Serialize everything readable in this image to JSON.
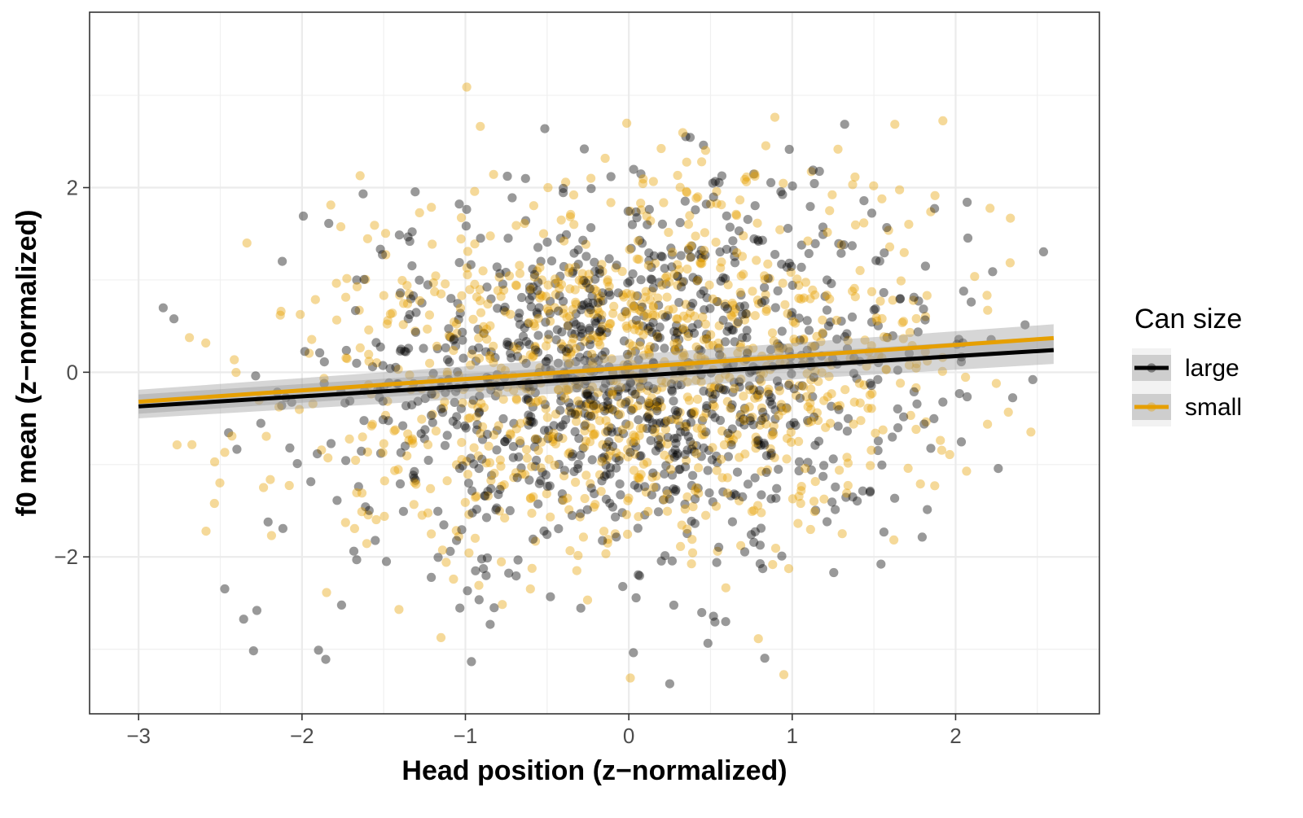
{
  "chart_data": {
    "type": "scatter",
    "title": "",
    "xlabel": "Head position (z−normalized)",
    "ylabel": "f0 mean (z−normalized)",
    "xlim": [
      -3.3,
      2.88
    ],
    "ylim": [
      -3.7,
      3.9
    ],
    "x_ticks": [
      -3,
      -2,
      -1,
      0,
      1,
      2
    ],
    "x_tick_labels": [
      "−3",
      "−2",
      "−1",
      "0",
      "1",
      "2"
    ],
    "y_ticks": [
      -2,
      0,
      2
    ],
    "y_tick_labels": [
      "−2",
      "0",
      "2"
    ],
    "grid": true,
    "legend": {
      "title": "Can size",
      "position": "right",
      "entries": [
        "large",
        "small"
      ]
    },
    "series": [
      {
        "name": "large",
        "color": "#000000",
        "point_alpha": 0.4,
        "n_points": 1100,
        "x_range": [
          -3.0,
          2.6
        ],
        "y_range": [
          -3.4,
          3.6
        ],
        "fit_line": {
          "x": [
            -3.0,
            2.6
          ],
          "y": [
            -0.37,
            0.24
          ]
        },
        "fit_band_halfwidth": [
          0.13,
          0.15
        ]
      },
      {
        "name": "small",
        "color": "#E69F00",
        "point_alpha": 0.4,
        "n_points": 1100,
        "x_range": [
          -3.0,
          2.6
        ],
        "y_range": [
          -3.35,
          3.45
        ],
        "fit_line": {
          "x": [
            -3.0,
            2.6
          ],
          "y": [
            -0.32,
            0.37
          ]
        },
        "fit_band_halfwidth": [
          0.13,
          0.15
        ]
      }
    ]
  }
}
